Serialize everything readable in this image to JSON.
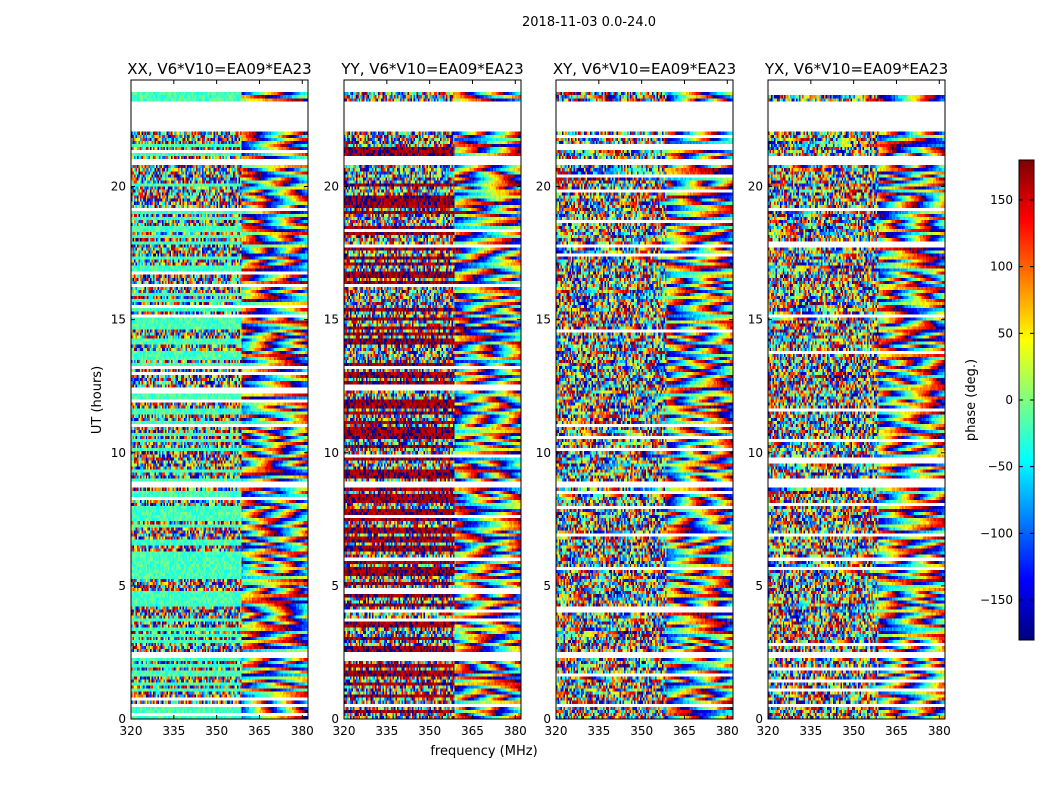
{
  "figure": {
    "suptitle": "2018-11-03 0.0-24.0"
  },
  "chart_data": {
    "type": "heatmap",
    "xlabel": "frequency (MHz)",
    "ylabel": "UT (hours)",
    "xlim": [
      320,
      382
    ],
    "ylim": [
      0,
      24
    ],
    "xticks": [
      320,
      335,
      350,
      365,
      380
    ],
    "yticks": [
      0,
      5,
      10,
      15,
      20
    ],
    "colorbar": {
      "label": "phase (deg.)",
      "range": [
        -180,
        180
      ],
      "ticks": [
        150,
        100,
        50,
        0,
        -50,
        -100,
        -150
      ],
      "tick_labels": [
        "150",
        "100",
        "50",
        "0",
        "−50",
        "−100",
        "−150"
      ],
      "colormap": "jet",
      "stops": [
        "#00007f",
        "#0000ff",
        "#007fff",
        "#00ffff",
        "#7fff7f",
        "#ffff00",
        "#ff7f00",
        "#ff0000",
        "#7f0000"
      ]
    },
    "panels": [
      {
        "title": "XX, V6*V10=EA09*EA23",
        "baseline_phase_deg": -20
      },
      {
        "title": "YY, V6*V10=EA09*EA23",
        "baseline_phase_deg": 170
      },
      {
        "title": "XY, V6*V10=EA09*EA23",
        "baseline_phase_deg": null
      },
      {
        "title": "YX, V6*V10=EA09*EA23",
        "baseline_phase_deg": null
      }
    ],
    "flagged_ut_ranges_hours": [
      [
        22.1,
        23.2
      ],
      [
        20.8,
        21.0
      ],
      [
        8.7,
        8.9
      ],
      [
        2.3,
        2.5
      ],
      [
        0.5,
        0.6
      ],
      [
        23.6,
        24.0
      ]
    ]
  }
}
